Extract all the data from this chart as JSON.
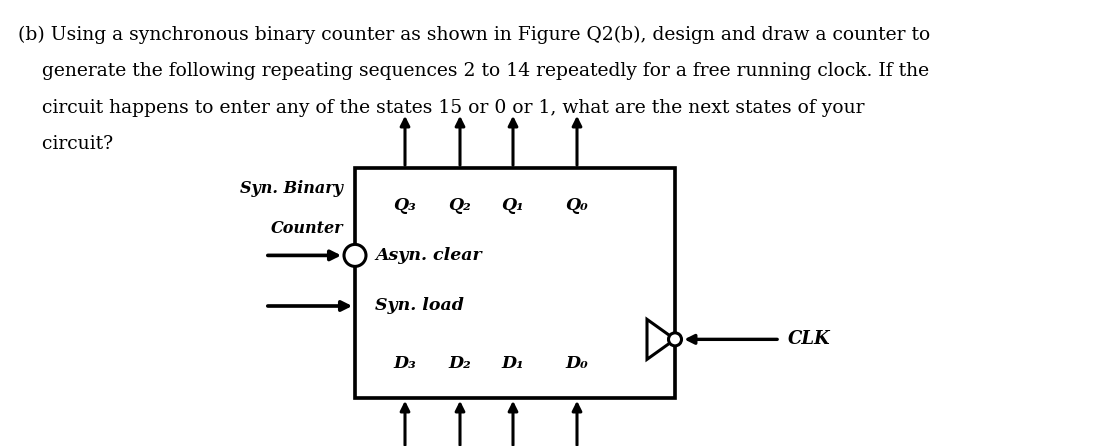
{
  "question_lines": [
    "(b) Using a synchronous binary counter as shown in Figure Q2(b), design and draw a counter to",
    "    generate the following repeating sequences 2 to 14 repeatedly for a free running clock. If the",
    "    circuit happens to enter any of the states 15 or 0 or 1, what are the next states of your",
    "    circuit?"
  ],
  "label_syn_binary": "Syn. Binary",
  "label_counter": "Counter",
  "label_q3": "Q₃",
  "label_q2": "Q₂",
  "label_q1": "Q₁",
  "label_q0": "Q₀",
  "label_asyn_clear": "Asyn. clear",
  "label_syn_load": "Syn. load",
  "label_d3": "D₃",
  "label_d2": "D₂",
  "label_d1": "D₁",
  "label_d0": "D₀",
  "label_clk": "CLK",
  "font_color": "#000000",
  "bg_color": "#ffffff",
  "line_width": 2.2,
  "text_fontsize": 13.5,
  "label_fontsize": 12.5,
  "clk_fontsize": 13.0
}
